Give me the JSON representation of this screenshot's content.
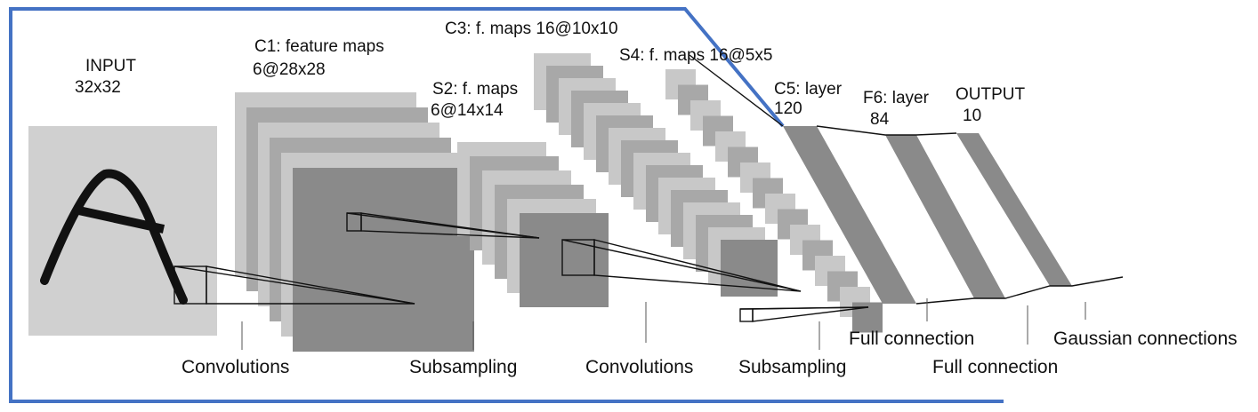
{
  "colors": {
    "frame": "#4472c4",
    "light_gray": "#c8c8c8",
    "mid_gray": "#a8a8a8",
    "dark_gray": "#8a8a8a",
    "input_gray": "#d0d0d0",
    "line": "#111111"
  },
  "layers": {
    "input": {
      "name": "INPUT",
      "size": "32x32"
    },
    "c1": {
      "name": "C1: feature maps",
      "size": "6@28x28"
    },
    "s2": {
      "name": "S2: f. maps",
      "size": "6@14x14"
    },
    "c3": {
      "name": "C3: f. maps 16@10x10"
    },
    "s4": {
      "name": "S4: f. maps 16@5x5"
    },
    "c5": {
      "name": "C5: layer",
      "size": "120"
    },
    "f6": {
      "name": "F6: layer",
      "size": "84"
    },
    "output": {
      "name": "OUTPUT",
      "size": "10"
    }
  },
  "operations": {
    "conv1": "Convolutions",
    "sub1": "Subsampling",
    "conv2": "Convolutions",
    "sub2": "Subsampling",
    "full1": "Full connection",
    "full2": "Full connection",
    "gauss": "Gaussian connections"
  }
}
